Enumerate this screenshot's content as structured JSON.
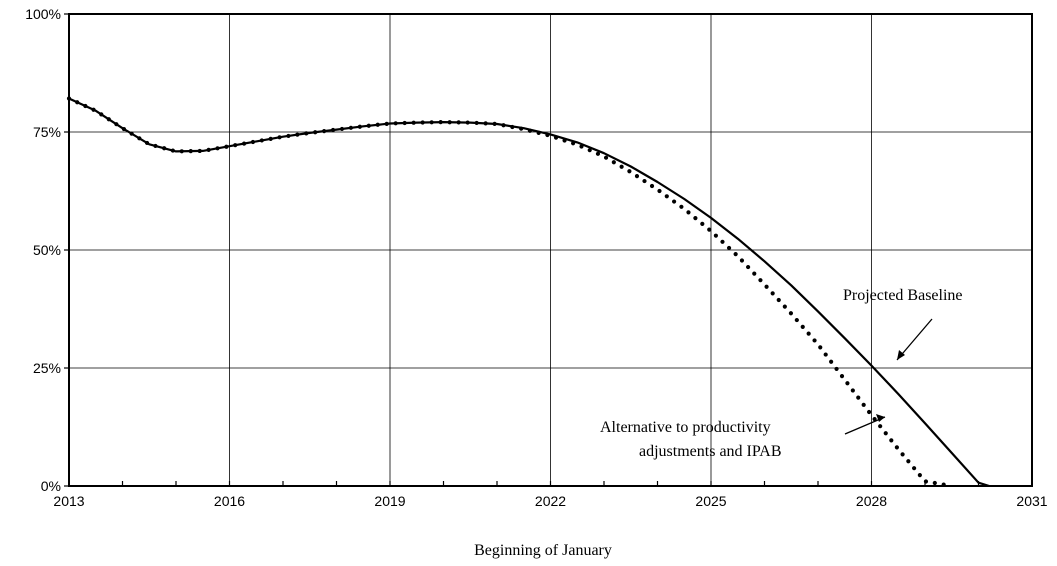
{
  "chart_data": {
    "type": "line",
    "title": "",
    "xlabel": "Beginning of January",
    "ylabel": "",
    "xlim": [
      2013,
      2031
    ],
    "ylim": [
      0,
      100
    ],
    "x_ticks": [
      2013,
      2016,
      2019,
      2022,
      2025,
      2028,
      2031
    ],
    "x_tick_labels": [
      "2013",
      "2016",
      "2019",
      "2022",
      "2025",
      "2028",
      "2031"
    ],
    "y_ticks": [
      0,
      25,
      50,
      75,
      100
    ],
    "y_tick_labels": [
      "0%",
      "25%",
      "50%",
      "75%",
      "100%"
    ],
    "grid": true,
    "series": [
      {
        "name": "Projected Baseline",
        "style": "solid",
        "x": [
          2013,
          2013.5,
          2014,
          2014.5,
          2015,
          2015.5,
          2016,
          2016.5,
          2017,
          2017.5,
          2018,
          2018.5,
          2019,
          2019.5,
          2020,
          2020.5,
          2021,
          2021.5,
          2022,
          2022.5,
          2023,
          2023.5,
          2024,
          2024.5,
          2025,
          2025.5,
          2026,
          2026.5,
          2027,
          2027.5,
          2028,
          2028.5,
          2029,
          2029.5,
          2030,
          2030.2
        ],
        "values": [
          82.1,
          79.5,
          75.8,
          72.4,
          70.9,
          71.0,
          72.0,
          73.0,
          74.0,
          74.8,
          75.5,
          76.2,
          76.8,
          77.0,
          77.1,
          77.0,
          76.7,
          75.8,
          74.5,
          72.8,
          70.5,
          67.7,
          64.4,
          60.8,
          56.8,
          52.4,
          47.6,
          42.5,
          37.0,
          31.3,
          25.5,
          19.5,
          13.3,
          7.0,
          0.7,
          0
        ]
      },
      {
        "name": "Alternative to productivity adjustments and IPAB",
        "style": "dotted",
        "x": [
          2013,
          2013.5,
          2014,
          2014.5,
          2015,
          2015.5,
          2016,
          2016.5,
          2017,
          2017.5,
          2018,
          2018.5,
          2019,
          2019.5,
          2020,
          2020.5,
          2021,
          2021.5,
          2022,
          2022.5,
          2023,
          2023.5,
          2024,
          2024.5,
          2025,
          2025.5,
          2026,
          2026.5,
          2027,
          2027.5,
          2028,
          2028.5,
          2029,
          2029.5
        ],
        "values": [
          82.1,
          79.5,
          75.8,
          72.4,
          70.9,
          71.0,
          72.0,
          73.0,
          74.0,
          74.8,
          75.5,
          76.2,
          76.8,
          77.0,
          77.1,
          77.0,
          76.7,
          75.6,
          74.2,
          72.3,
          69.8,
          66.5,
          62.8,
          58.7,
          54.0,
          48.7,
          42.7,
          36.5,
          30.0,
          22.5,
          15.0,
          7.8,
          1.0,
          0
        ]
      }
    ],
    "annotations": [
      {
        "text": "Projected Baseline",
        "points_to_series": 0
      },
      {
        "text_lines": [
          "Alternative to productivity",
          "adjustments and IPAB"
        ],
        "points_to_series": 1
      }
    ]
  }
}
